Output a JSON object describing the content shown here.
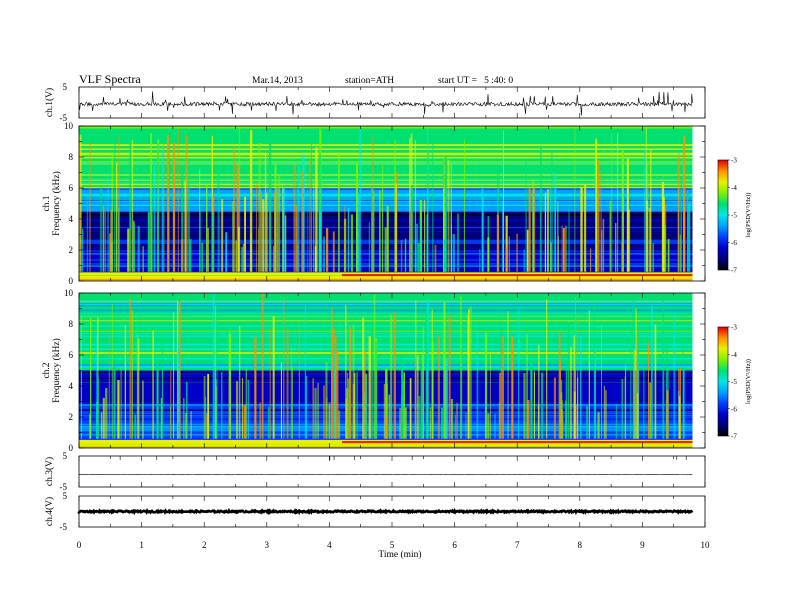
{
  "header": {
    "title": "VLF Spectra",
    "date": "Mar.14, 2013",
    "station": "station=ATH",
    "start": "start UT =   5 :40: 0"
  },
  "colors": {
    "colormap": [
      "#000000",
      "#00007a",
      "#0000c8",
      "#0040ff",
      "#00a0ff",
      "#00e6e6",
      "#00e070",
      "#80f000",
      "#e8f000",
      "#ff9000",
      "#e00000",
      "#ffffff"
    ],
    "trace": "#000000"
  },
  "chart_data": {
    "type": "heatmap",
    "xlabel": "Time (min)",
    "xlim": [
      0,
      10
    ],
    "xticks": [
      "0",
      "1",
      "2",
      "3",
      "4",
      "5",
      "6",
      "7",
      "8",
      "9",
      "10"
    ],
    "data_end_min": 9.8,
    "panels": [
      {
        "kind": "waveform",
        "ylabel": "ch.1(V)",
        "ylim": [
          -5,
          5
        ],
        "yticks": [
          "5",
          "-5"
        ],
        "baseline_v": -0.5,
        "noise": "high"
      },
      {
        "kind": "spectrogram",
        "channel_label": "ch.1",
        "ylabel": "Frequency (kHz)",
        "ylim": [
          0,
          10
        ],
        "yticks": [
          "0",
          "2",
          "4",
          "6",
          "8",
          "10"
        ],
        "colorbar": {
          "label": "log(PSD(V²/Hz))",
          "range": [
            -7,
            -3
          ],
          "ticks": [
            "-3",
            "-4",
            "-5",
            "-6",
            "-7"
          ]
        },
        "intensity_bands_khz": [
          {
            "from": 0.0,
            "to": 0.6,
            "level": 0.88
          },
          {
            "from": 0.6,
            "to": 2.0,
            "level": 0.28
          },
          {
            "from": 2.0,
            "to": 4.5,
            "level": 0.18
          },
          {
            "from": 4.5,
            "to": 6.0,
            "level": 0.42
          },
          {
            "from": 6.0,
            "to": 10.0,
            "level": 0.68
          }
        ]
      },
      {
        "kind": "spectrogram",
        "channel_label": "ch.2",
        "ylabel": "Frequency (kHz)",
        "ylim": [
          0,
          10
        ],
        "yticks": [
          "0",
          "2",
          "4",
          "6",
          "8",
          "10"
        ],
        "colorbar": {
          "label": "log(PSD(V²/Hz))",
          "range": [
            -7,
            -3
          ],
          "ticks": [
            "-3",
            "-4",
            "-5",
            "-6",
            "-7"
          ]
        },
        "intensity_bands_khz": [
          {
            "from": 0.0,
            "to": 0.6,
            "level": 0.82
          },
          {
            "from": 0.6,
            "to": 3.0,
            "level": 0.3
          },
          {
            "from": 3.0,
            "to": 5.0,
            "level": 0.2
          },
          {
            "from": 5.0,
            "to": 10.0,
            "level": 0.62
          }
        ]
      },
      {
        "kind": "waveform",
        "ylabel": "ch.3(V)",
        "ylim": [
          -5,
          5
        ],
        "yticks": [
          "5",
          "-5"
        ],
        "baseline_v": -1.0,
        "noise": "low"
      },
      {
        "kind": "waveform",
        "ylabel": "ch.4(V)",
        "ylim": [
          -5,
          5
        ],
        "yticks": [
          "5",
          "-5"
        ],
        "baseline_v": 0.0,
        "noise": "thick"
      }
    ]
  }
}
